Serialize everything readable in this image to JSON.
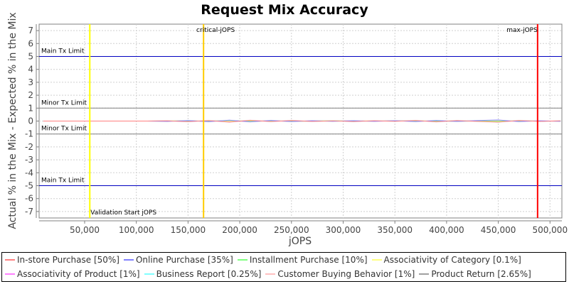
{
  "chart_data": {
    "type": "line",
    "title": "Request Mix Accuracy",
    "xlabel": "jOPS",
    "ylabel": "Actual % in the Mix - Expected % in the Mix",
    "xlim": [
      6000,
      511500
    ],
    "ylim": [
      -7.5,
      7.5
    ],
    "grid": true,
    "legend_placement": "bottom",
    "x_ticks": [
      50000,
      100000,
      150000,
      200000,
      250000,
      300000,
      350000,
      400000,
      450000,
      500000
    ],
    "x_tick_labels": [
      "50,000",
      "100,000",
      "150,000",
      "200,000",
      "250,000",
      "300,000",
      "350,000",
      "400,000",
      "450,000",
      "500,000"
    ],
    "y_ticks": [
      7,
      6,
      5,
      4,
      3,
      2,
      1,
      0,
      -1,
      -2,
      -3,
      -4,
      -5,
      -6,
      -7
    ],
    "y_tick_labels": [
      "7",
      "6",
      "5",
      "4",
      "3",
      "2",
      "1",
      "0",
      "-1",
      "-2",
      "-3",
      "-4",
      "-5",
      "-6",
      "-7"
    ],
    "horizontal_markers": [
      {
        "label": "Main Tx Limit",
        "y": 5,
        "color": "#0000c0"
      },
      {
        "label": "Minor Tx Limit",
        "y": 1,
        "color": "#808080"
      },
      {
        "label": "Minor Tx Limit",
        "y": -1,
        "color": "#808080"
      },
      {
        "label": "Main Tx Limit",
        "y": -5,
        "color": "#0000c0"
      }
    ],
    "vertical_markers": [
      {
        "label": "Validation Start jOPS",
        "x": 55000,
        "color": "#ffff00"
      },
      {
        "label": "critical-jOPS",
        "x": 165000,
        "color": "#ffcc00"
      },
      {
        "label": "max-jOPS",
        "x": 488000,
        "color": "#ff0000"
      }
    ],
    "x": [
      10000,
      30000,
      50000,
      70000,
      90000,
      110000,
      130000,
      150000,
      170000,
      190000,
      210000,
      230000,
      250000,
      270000,
      290000,
      310000,
      330000,
      350000,
      370000,
      390000,
      410000,
      430000,
      450000,
      470000,
      490000,
      510000
    ],
    "series": [
      {
        "name": "In-store Purchase [50%]",
        "color": "#ff8080",
        "values": [
          0,
          0,
          0,
          0,
          0,
          0,
          0.02,
          -0.05,
          0.04,
          -0.08,
          0.06,
          -0.04,
          0.05,
          -0.03,
          0.02,
          -0.04,
          0.03,
          -0.02,
          0.05,
          -0.06,
          0.04,
          -0.03,
          -0.08,
          0.05,
          -0.03,
          0.02
        ]
      },
      {
        "name": "Online Purchase [35%]",
        "color": "#8080ff",
        "values": [
          0,
          0,
          0,
          0,
          0,
          0,
          -0.03,
          0.04,
          -0.05,
          0.07,
          -0.06,
          0.05,
          -0.04,
          0.03,
          -0.02,
          0.03,
          -0.02,
          0.03,
          -0.04,
          0.05,
          -0.03,
          0.04,
          0.08,
          -0.04,
          0.02,
          -0.02
        ]
      },
      {
        "name": "Installment Purchase [10%]",
        "color": "#80ff80",
        "values": [
          0,
          0,
          0,
          0,
          0,
          0,
          0.01,
          0.02,
          -0.02,
          0.05,
          -0.03,
          0.02,
          -0.02,
          0.01,
          0.02,
          -0.01,
          0.01,
          -0.01,
          0.03,
          -0.02,
          0.02,
          -0.01,
          -0.03,
          0.03,
          -0.01,
          0.01
        ]
      },
      {
        "name": "Associativity of Category [0.1%]",
        "color": "#ffff80",
        "values": [
          0,
          0,
          0,
          0,
          0,
          0,
          0,
          0.01,
          0,
          -0.01,
          0,
          0.01,
          0,
          0,
          -0.01,
          0,
          0.01,
          0,
          0,
          0.01,
          0,
          0,
          0.01,
          0,
          0,
          0
        ]
      },
      {
        "name": "Associativity of Product [1%]",
        "color": "#ff80ff",
        "values": [
          0,
          0,
          0,
          0,
          0,
          0,
          0.01,
          -0.01,
          0.01,
          -0.02,
          0.01,
          0,
          -0.01,
          0.01,
          0,
          0.01,
          -0.01,
          0,
          0.01,
          -0.01,
          0,
          0.01,
          -0.01,
          0,
          0.01,
          0
        ]
      },
      {
        "name": "Business Report [0.25%]",
        "color": "#80ffff",
        "values": [
          0,
          0,
          0,
          0,
          0,
          0,
          0,
          0,
          0.01,
          0,
          -0.01,
          0,
          0.01,
          0,
          0,
          -0.01,
          0,
          0.01,
          0,
          0,
          -0.01,
          0,
          0.01,
          0,
          0,
          0
        ]
      },
      {
        "name": "Customer Buying Behavior [1%]",
        "color": "#ffc0c0",
        "values": [
          0,
          0,
          0,
          0,
          0,
          0,
          -0.01,
          0.02,
          -0.01,
          0.01,
          -0.02,
          0.01,
          0,
          -0.01,
          0.01,
          0,
          -0.01,
          0.01,
          0,
          -0.01,
          0.01,
          -0.01,
          0.02,
          -0.01,
          0,
          0.01
        ]
      },
      {
        "name": "Product Return [2.65%]",
        "color": "#a0a0a0",
        "values": [
          0,
          0,
          0,
          0,
          0,
          0,
          0.01,
          -0.02,
          0.02,
          -0.01,
          0.02,
          -0.01,
          0.01,
          -0.02,
          0.01,
          0.01,
          -0.01,
          0.02,
          -0.01,
          0.01,
          -0.02,
          0.01,
          -0.02,
          0.01,
          0.01,
          -0.01
        ]
      }
    ]
  }
}
